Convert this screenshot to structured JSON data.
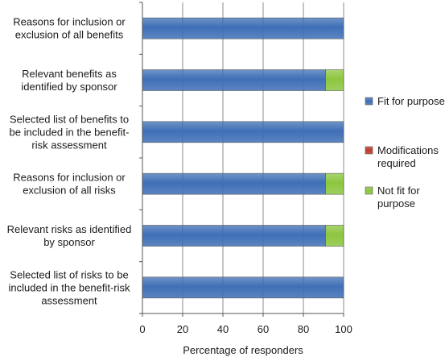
{
  "chart_data": {
    "type": "bar",
    "orientation": "horizontal",
    "stacked": true,
    "categories": [
      "Reasons for inclusion or exclusion of all benefits",
      "Relevant benefits as identified by sponsor",
      "Selected list of benefits to be included in the benefit-risk assessment",
      "Reasons for inclusion or exclusion of all risks",
      "Relevant risks as identified by sponsor",
      "Selected list of risks to be included in the benefit-risk assessment"
    ],
    "category_lines": [
      [
        "Reasons for inclusion or",
        "exclusion of all benefits"
      ],
      [
        "Relevant benefits as",
        "identified by sponsor"
      ],
      [
        "Selected list of benefits to",
        "be included in the benefit-",
        "risk assessment"
      ],
      [
        "Reasons for inclusion or",
        "exclusion of all risks"
      ],
      [
        "Relevant risks as identified",
        "by sponsor"
      ],
      [
        "Selected list of risks to be",
        "included in the benefit-risk",
        "assessment"
      ]
    ],
    "series": [
      {
        "name": "Fit for purpose",
        "name_lines": [
          "Fit for purpose"
        ],
        "color": "#3f6fb6",
        "values": [
          100,
          91,
          100,
          91,
          91,
          100
        ]
      },
      {
        "name": "Modifications required",
        "name_lines": [
          "Modifications",
          "required"
        ],
        "color": "#c0392b",
        "values": [
          0,
          0,
          0,
          0,
          0,
          0
        ]
      },
      {
        "name": "Not fit for purpose",
        "name_lines": [
          "Not fit for",
          "purpose"
        ],
        "color": "#8cc63f",
        "values": [
          0,
          9,
          0,
          9,
          9,
          0
        ]
      }
    ],
    "xlabel": "Percentage of responders",
    "xlim": [
      0,
      100
    ],
    "xticks": [
      "0",
      "20",
      "40",
      "60",
      "80",
      "100"
    ],
    "grid": true,
    "legend": "right"
  }
}
